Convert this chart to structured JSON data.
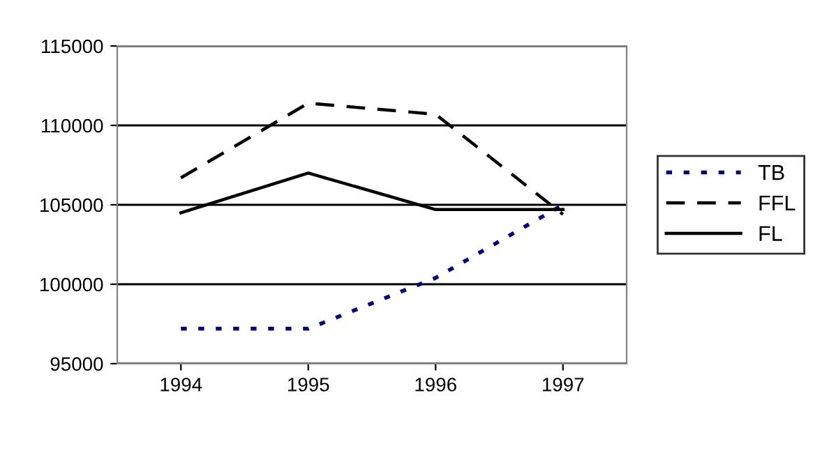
{
  "chart_data": {
    "type": "line",
    "categories": [
      "1994",
      "1995",
      "1996",
      "1997"
    ],
    "series": [
      {
        "name": "TB",
        "color": "#000080",
        "line_style": "dotted",
        "values": [
          97200,
          97200,
          100400,
          105000
        ]
      },
      {
        "name": "FFL",
        "color": "#000000",
        "line_style": "dashed",
        "values": [
          106700,
          111400,
          110700,
          104400
        ]
      },
      {
        "name": "FL",
        "color": "#000000",
        "line_style": "solid",
        "values": [
          104500,
          107000,
          104700,
          104700
        ]
      }
    ],
    "ylim": [
      95000,
      115000
    ],
    "yticks": [
      95000,
      100000,
      105000,
      110000,
      115000
    ],
    "grid": "y",
    "legend": "right",
    "marker": "none"
  }
}
